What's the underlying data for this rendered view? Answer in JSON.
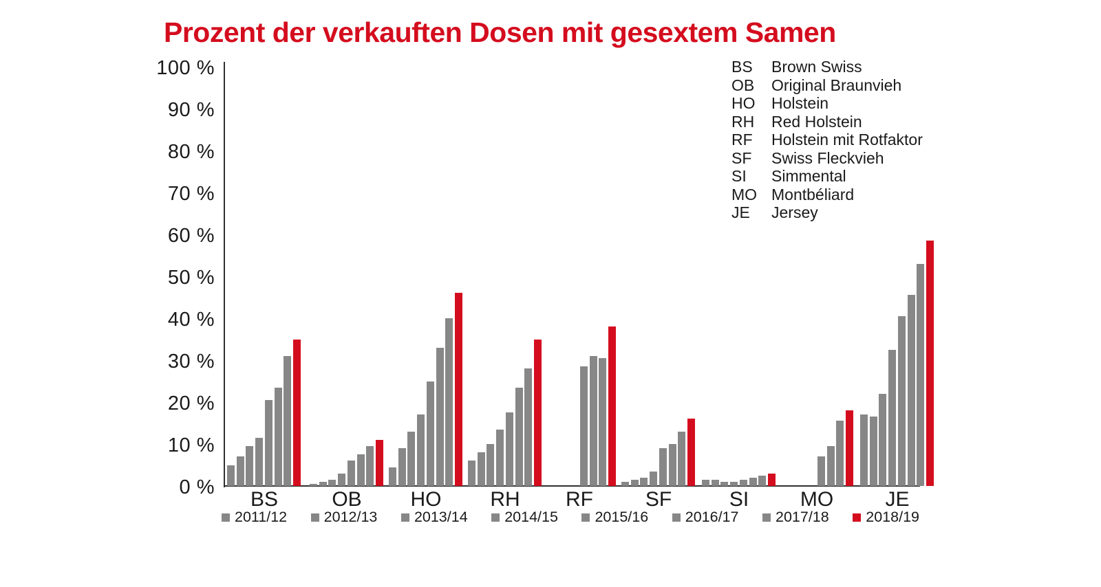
{
  "title": "Prozent der verkauften Dosen mit gesextem Samen",
  "colors": {
    "accent_red": "#d40d1e",
    "bar_gray": "#878787",
    "text": "#1a1a1a",
    "axis": "#303030"
  },
  "y_axis": {
    "unit": "%",
    "min": 0,
    "max": 100,
    "step": 10,
    "tick_labels": [
      "100 %",
      "90 %",
      "80 %",
      "70 %",
      "60 %",
      "50 %",
      "40 %",
      "30 %",
      "20 %",
      "10 %",
      "0 %"
    ]
  },
  "breed_legend": [
    {
      "code": "BS",
      "name": "Brown Swiss"
    },
    {
      "code": "OB",
      "name": "Original Braunvieh"
    },
    {
      "code": "HO",
      "name": "Holstein"
    },
    {
      "code": "RH",
      "name": "Red Holstein"
    },
    {
      "code": "RF",
      "name": "Holstein mit Rotfaktor"
    },
    {
      "code": "SF",
      "name": "Swiss Fleckvieh"
    },
    {
      "code": "SI",
      "name": "Simmental"
    },
    {
      "code": "MO",
      "name": "Montbéliard"
    },
    {
      "code": "JE",
      "name": "Jersey"
    }
  ],
  "chart_data": {
    "type": "bar",
    "title": "Prozent der verkauften Dosen mit gesextem Samen",
    "xlabel": "",
    "ylabel": "%",
    "ylim": [
      0,
      100
    ],
    "grid": false,
    "legend_position": "bottom",
    "highlight_series": "2018/19",
    "categories": [
      "BS",
      "OB",
      "HO",
      "RH",
      "RF",
      "SF",
      "SI",
      "MO",
      "JE"
    ],
    "series": [
      {
        "name": "2011/12",
        "color": "#878787",
        "values": [
          5,
          0.5,
          4.5,
          6,
          0,
          1,
          1.5,
          0,
          17
        ]
      },
      {
        "name": "2012/13",
        "color": "#878787",
        "values": [
          7,
          1,
          9,
          8,
          0,
          1.5,
          1.5,
          0,
          16.5
        ]
      },
      {
        "name": "2013/14",
        "color": "#878787",
        "values": [
          9.5,
          1.5,
          13,
          10,
          0,
          2,
          1,
          0,
          22
        ]
      },
      {
        "name": "2014/15",
        "color": "#878787",
        "values": [
          11.5,
          3,
          17,
          13.5,
          0,
          3.5,
          1,
          0,
          32.5
        ]
      },
      {
        "name": "2015/16",
        "color": "#878787",
        "values": [
          20.5,
          6,
          25,
          17.5,
          28.5,
          9,
          1.5,
          7,
          40.5
        ]
      },
      {
        "name": "2016/17",
        "color": "#878787",
        "values": [
          23.5,
          7.5,
          33,
          23.5,
          31,
          10,
          2,
          9.5,
          45.5
        ]
      },
      {
        "name": "2017/18",
        "color": "#878787",
        "values": [
          31,
          9.5,
          40,
          28,
          30.5,
          13,
          2.5,
          15.5,
          53
        ]
      },
      {
        "name": "2018/19",
        "color": "#d40d1e",
        "values": [
          35,
          11,
          46,
          35,
          38,
          16,
          3,
          18,
          58.5
        ]
      }
    ]
  }
}
